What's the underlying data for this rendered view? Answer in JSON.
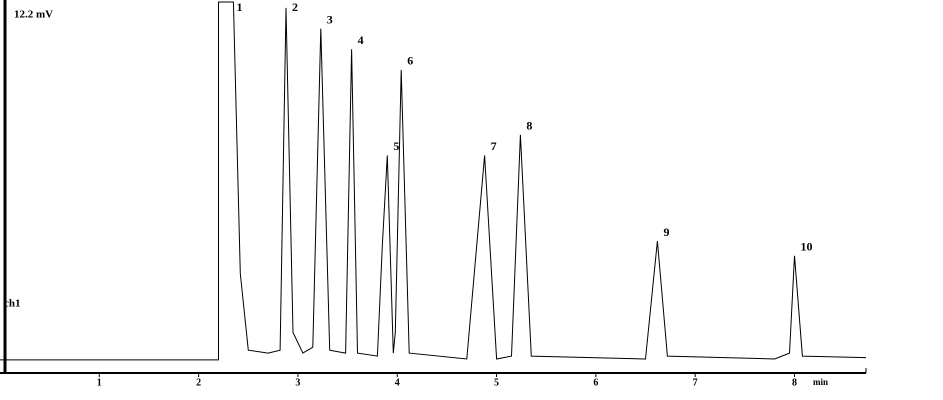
{
  "chart_data": {
    "type": "line",
    "y_label": "12.2 mV",
    "channel": "ch1",
    "x_label": "min",
    "xlim": [
      0,
      8.72
    ],
    "xticks": [
      1,
      2,
      3,
      4,
      5,
      6,
      7,
      8
    ],
    "ylim": [
      0,
      12.2
    ],
    "color": "#000000",
    "x": [
      0,
      2.2,
      2.2,
      2.35,
      2.42,
      2.5,
      2.7,
      2.82,
      2.88,
      2.95,
      3.05,
      3.15,
      3.23,
      3.32,
      3.48,
      3.54,
      3.6,
      3.8,
      3.85,
      3.9,
      3.96,
      3.98,
      4.04,
      4.12,
      4.7,
      4.88,
      5.0,
      5.15,
      5.24,
      5.35,
      6.5,
      6.62,
      6.72,
      7.8,
      7.95,
      8.0,
      8.08,
      8.72
    ],
    "values": [
      0.07,
      0.07,
      12.2,
      12.2,
      3,
      0.4,
      0.3,
      0.4,
      12.0,
      1,
      0.3,
      0.5,
      11.3,
      0.4,
      0.3,
      10.6,
      0.3,
      0.2,
      4,
      7.0,
      0.3,
      1,
      9.9,
      0.3,
      0.1,
      7.0,
      0.1,
      0.2,
      7.7,
      0.2,
      0.1,
      4.1,
      0.2,
      0.1,
      0.3,
      3.6,
      0.2,
      0.15
    ],
    "peak_labels": [
      "1",
      "2",
      "3",
      "4",
      "5",
      "6",
      "7",
      "8",
      "9",
      "10"
    ]
  }
}
